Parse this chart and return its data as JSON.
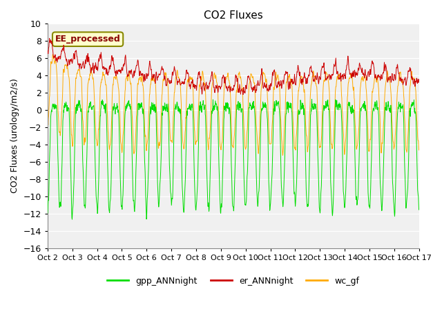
{
  "title": "CO2 Fluxes",
  "ylabel": "CO2 Fluxes (urology/m2/s)",
  "ylim": [
    -16,
    10
  ],
  "yticks": [
    -16,
    -14,
    -12,
    -10,
    -8,
    -6,
    -4,
    -2,
    0,
    2,
    4,
    6,
    8,
    10
  ],
  "fig_bg_color": "#ffffff",
  "plot_bg_color": "#f0f0f0",
  "grid_color": "#ffffff",
  "legend_labels": [
    "gpp_ANNnight",
    "er_ANNnight",
    "wc_gf"
  ],
  "line_colors": [
    "#00dd00",
    "#cc0000",
    "#ffaa00"
  ],
  "annotation_text": "EE_processed",
  "annotation_color": "#880000",
  "annotation_bg": "#ffffcc",
  "annotation_edge": "#888800",
  "n_days": 15,
  "points_per_day": 96,
  "start_day": 2,
  "seed": 42
}
